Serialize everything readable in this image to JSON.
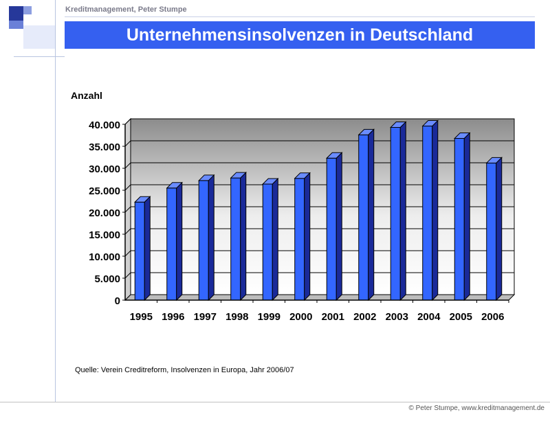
{
  "header": {
    "author": "Kreditmanagement, Peter Stumpe",
    "title": "Unternehmensinsolvenzen in Deutschland"
  },
  "colors": {
    "banner": "#3560f0",
    "bar_front": "#3366ff",
    "bar_side": "#1a2a99",
    "bar_top": "#6a8cff"
  },
  "chart_data": {
    "type": "bar",
    "title": "",
    "xlabel": "",
    "ylabel": "Anzahl",
    "categories": [
      "1995",
      "1996",
      "1997",
      "1998",
      "1999",
      "2000",
      "2001",
      "2002",
      "2003",
      "2004",
      "2005",
      "2006"
    ],
    "values": [
      22300,
      25500,
      27200,
      27800,
      26400,
      27700,
      32300,
      37600,
      39300,
      39600,
      36800,
      31200
    ],
    "ylim": [
      0,
      40000
    ],
    "yticks": [
      "0",
      "5.000",
      "10.000",
      "15.000",
      "20.000",
      "25.000",
      "30.000",
      "35.000",
      "40.000"
    ],
    "grid": true,
    "legend": "none"
  },
  "source": "Quelle: Verein Creditreform, Insolvenzen in Europa, Jahr 2006/07",
  "footer": "© Peter Stumpe,  www.kreditmanagement.de"
}
